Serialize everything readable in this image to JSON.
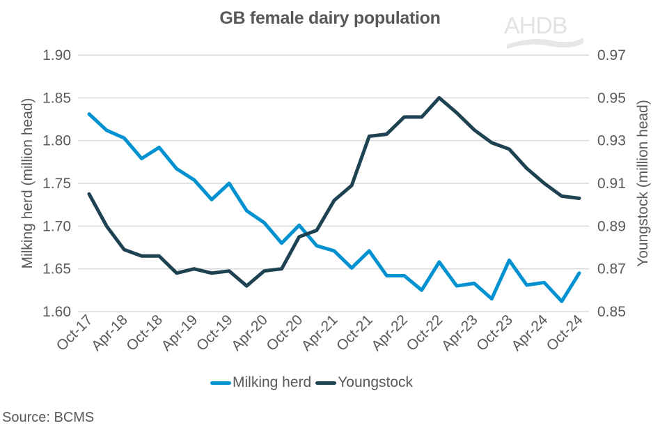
{
  "title": "GB female dairy population",
  "logo": {
    "text": "AHDB",
    "icon": "ahdb-logo-swoosh"
  },
  "source": "Source: BCMS",
  "legend": [
    {
      "label": "Milking herd",
      "color": "#0091d1"
    },
    {
      "label": "Youngstock",
      "color": "#1e4252"
    }
  ],
  "colors": {
    "milking": "#0091d1",
    "youngstock": "#1e4252",
    "grid": "#d9d9d9",
    "text": "#595959"
  },
  "chart_data": {
    "type": "line",
    "title": "GB female dairy population",
    "xlabel": "",
    "ylabel": "Milking herd (million head)",
    "y2label": "Youngstock (million head)",
    "ylim": [
      1.6,
      1.9
    ],
    "y2lim": [
      0.85,
      0.97
    ],
    "yticks": [
      "1.60",
      "1.65",
      "1.70",
      "1.75",
      "1.80",
      "1.85",
      "1.90"
    ],
    "y2ticks": [
      "0.85",
      "0.87",
      "0.89",
      "0.91",
      "0.93",
      "0.95",
      "0.97"
    ],
    "xtick_labels": [
      "Oct-17",
      "Apr-18",
      "Oct-18",
      "Apr-19",
      "Oct-19",
      "Apr-20",
      "Oct-20",
      "Apr-21",
      "Oct-21",
      "Apr-22",
      "Oct-22",
      "Apr-23",
      "Oct-23",
      "Apr-24",
      "Oct-24"
    ],
    "x": [
      "Oct-17",
      "Jan-18",
      "Apr-18",
      "Jul-18",
      "Oct-18",
      "Jan-19",
      "Apr-19",
      "Jul-19",
      "Oct-19",
      "Jan-20",
      "Apr-20",
      "Jul-20",
      "Oct-20",
      "Jan-21",
      "Apr-21",
      "Jul-21",
      "Oct-21",
      "Jan-22",
      "Apr-22",
      "Jul-22",
      "Oct-22",
      "Jan-23",
      "Apr-23",
      "Jul-23",
      "Oct-23",
      "Jan-24",
      "Apr-24",
      "Jul-24",
      "Oct-24"
    ],
    "series": [
      {
        "name": "Milking herd",
        "axis": "left",
        "color": "#0091d1",
        "values": [
          1.831,
          1.812,
          1.803,
          1.779,
          1.792,
          1.767,
          1.754,
          1.731,
          1.75,
          1.718,
          1.704,
          1.68,
          1.701,
          1.677,
          1.671,
          1.651,
          1.671,
          1.642,
          1.642,
          1.625,
          1.658,
          1.63,
          1.633,
          1.615,
          1.66,
          1.631,
          1.634,
          1.612,
          1.645
        ]
      },
      {
        "name": "Youngstock",
        "axis": "right",
        "color": "#1e4252",
        "values": [
          0.905,
          0.89,
          0.879,
          0.876,
          0.876,
          0.868,
          0.87,
          0.868,
          0.869,
          0.862,
          0.869,
          0.87,
          0.885,
          0.888,
          0.902,
          0.909,
          0.932,
          0.933,
          0.941,
          0.941,
          0.95,
          0.943,
          0.935,
          0.929,
          0.926,
          0.917,
          0.91,
          0.904,
          0.903
        ]
      }
    ],
    "grid": true,
    "legend_position": "bottom"
  }
}
